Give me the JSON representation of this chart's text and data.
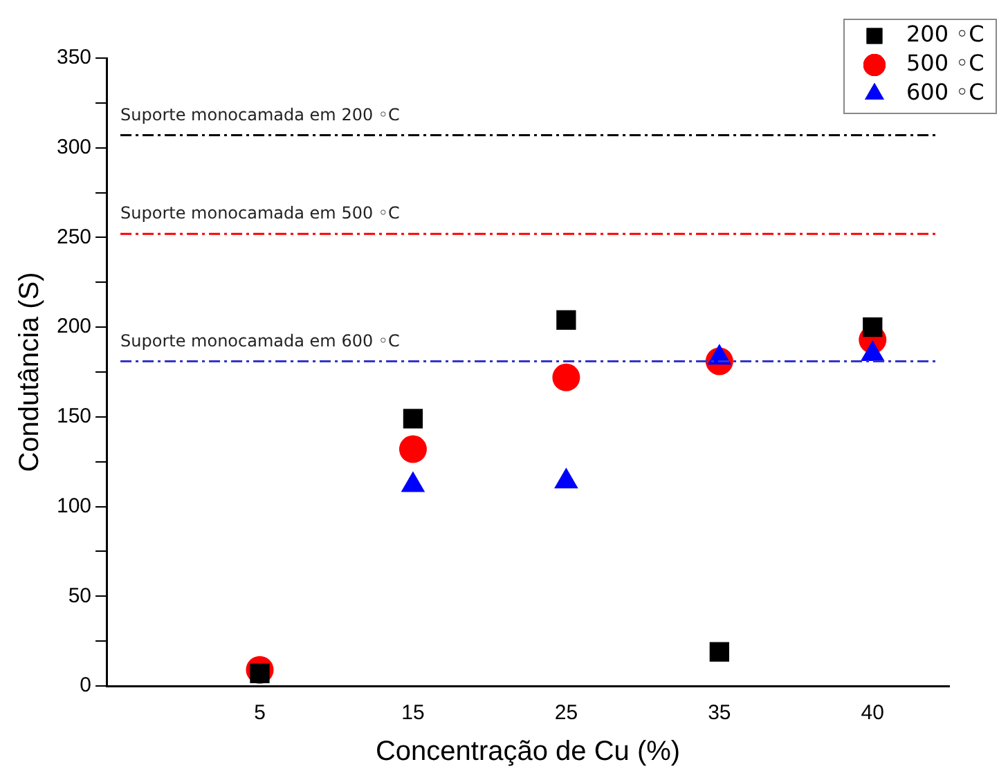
{
  "chart_data": {
    "type": "scatter",
    "xlabel": "Concentração de Cu (%)",
    "ylabel": "Condutância (S)",
    "categories": [
      null,
      "5",
      "15",
      "25",
      "35",
      "40"
    ],
    "series": [
      {
        "name": "200 ◦C",
        "color": "#000000",
        "marker": "square",
        "values": [
          null,
          7,
          149,
          204,
          19,
          200
        ]
      },
      {
        "name": "500 ◦C",
        "color": "#ff0000",
        "marker": "circle",
        "values": [
          null,
          9,
          132,
          172,
          181,
          193
        ]
      },
      {
        "name": "600 ◦C",
        "color": "#0000ff",
        "marker": "triangle",
        "values": [
          null,
          null,
          112,
          114,
          183,
          185
        ]
      }
    ],
    "ylim": [
      0,
      350
    ],
    "yticks": [
      0,
      {
        "value": 25,
        "label": null
      },
      50,
      {
        "value": 75,
        "label": null
      },
      100,
      {
        "value": 125,
        "label": null
      },
      150,
      {
        "value": 175,
        "label": null
      },
      200,
      {
        "value": 225,
        "label": null
      },
      250,
      {
        "value": 275,
        "label": null
      },
      300,
      {
        "value": 325,
        "label": null
      },
      350
    ],
    "ref_lines": [
      {
        "axis": "y",
        "value": 307,
        "label": "Suporte monocamada em 200 ◦C",
        "color": "#000000",
        "line_style": "dashdot"
      },
      {
        "axis": "y",
        "value": 252,
        "label": "Suporte monocamada em 500 ◦C",
        "color": "#ff0000",
        "line_style": "dashdot"
      },
      {
        "axis": "y",
        "value": 181,
        "label": "Suporte monocamada em 600 ◦C",
        "color": "#3333cc",
        "line_style": "dashdot"
      }
    ],
    "legend": "top right",
    "grid": false
  }
}
